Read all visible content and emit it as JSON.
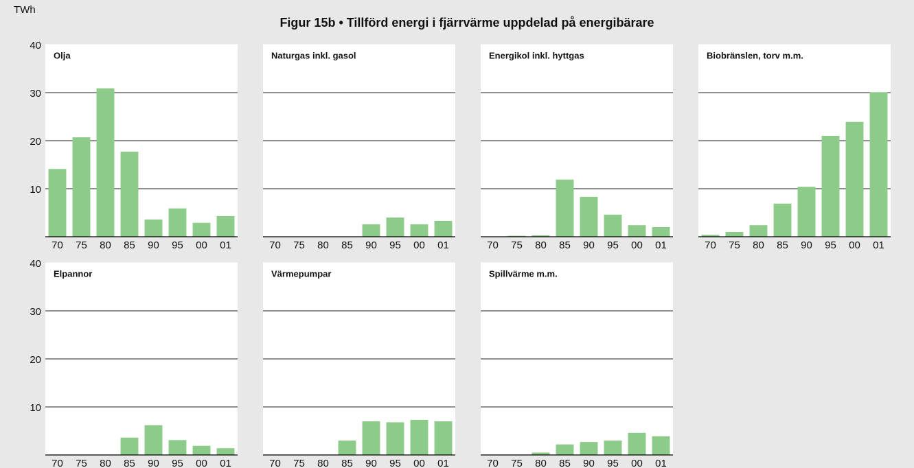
{
  "title": "Figur 15b • Tillförd energi i fjärrvärme uppdelad på energibärare",
  "y_label": "TWh",
  "chart_data": [
    {
      "type": "bar",
      "title": "Olja",
      "categories": [
        "70",
        "75",
        "80",
        "85",
        "90",
        "95",
        "00",
        "01"
      ],
      "values": [
        14.1,
        20.7,
        30.9,
        17.7,
        3.6,
        5.9,
        2.9,
        4.3
      ],
      "color": "#8dcb8a",
      "ylim": [
        0,
        40
      ],
      "yticks": [
        10,
        20,
        30,
        40
      ],
      "grid": true
    },
    {
      "type": "bar",
      "title": "Naturgas inkl. gasol",
      "categories": [
        "70",
        "75",
        "80",
        "85",
        "90",
        "95",
        "00",
        "01"
      ],
      "values": [
        0,
        0,
        0,
        0,
        2.6,
        4.0,
        2.6,
        3.3
      ],
      "color": "#8dcb8a",
      "ylim": [
        0,
        40
      ],
      "yticks": [
        10,
        20,
        30,
        40
      ],
      "grid": true
    },
    {
      "type": "bar",
      "title": "Energikol inkl. hyttgas",
      "categories": [
        "70",
        "75",
        "80",
        "85",
        "90",
        "95",
        "00",
        "01"
      ],
      "values": [
        0,
        0.2,
        0.3,
        11.9,
        8.3,
        4.6,
        2.4,
        2.0
      ],
      "color": "#8dcb8a",
      "ylim": [
        0,
        40
      ],
      "yticks": [
        10,
        20,
        30,
        40
      ],
      "grid": true
    },
    {
      "type": "bar",
      "title": "Biobränslen, torv m.m.",
      "categories": [
        "70",
        "75",
        "80",
        "85",
        "90",
        "95",
        "00",
        "01"
      ],
      "values": [
        0.4,
        1.0,
        2.4,
        6.9,
        10.4,
        21.0,
        23.9,
        30.1
      ],
      "color": "#8dcb8a",
      "ylim": [
        0,
        40
      ],
      "yticks": [
        10,
        20,
        30,
        40
      ],
      "grid": true
    },
    {
      "type": "bar",
      "title": "Elpannor",
      "categories": [
        "70",
        "75",
        "80",
        "85",
        "90",
        "95",
        "00",
        "01"
      ],
      "values": [
        0,
        0,
        0,
        3.6,
        6.2,
        3.1,
        1.9,
        1.4
      ],
      "color": "#8dcb8a",
      "ylim": [
        0,
        40
      ],
      "yticks": [
        10,
        20,
        30,
        40
      ],
      "grid": true
    },
    {
      "type": "bar",
      "title": "Värmepumpar",
      "categories": [
        "70",
        "75",
        "80",
        "85",
        "90",
        "95",
        "00",
        "01"
      ],
      "values": [
        0,
        0,
        0,
        3.0,
        7.0,
        6.8,
        7.3,
        7.0
      ],
      "color": "#8dcb8a",
      "ylim": [
        0,
        40
      ],
      "yticks": [
        10,
        20,
        30,
        40
      ],
      "grid": true
    },
    {
      "type": "bar",
      "title": "Spillvärme m.m.",
      "categories": [
        "70",
        "75",
        "80",
        "85",
        "90",
        "95",
        "00",
        "01"
      ],
      "values": [
        0,
        0,
        0.5,
        2.2,
        2.7,
        3.0,
        4.6,
        3.9
      ],
      "color": "#8dcb8a",
      "ylim": [
        0,
        40
      ],
      "yticks": [
        10,
        20,
        30,
        40
      ],
      "grid": true
    }
  ]
}
